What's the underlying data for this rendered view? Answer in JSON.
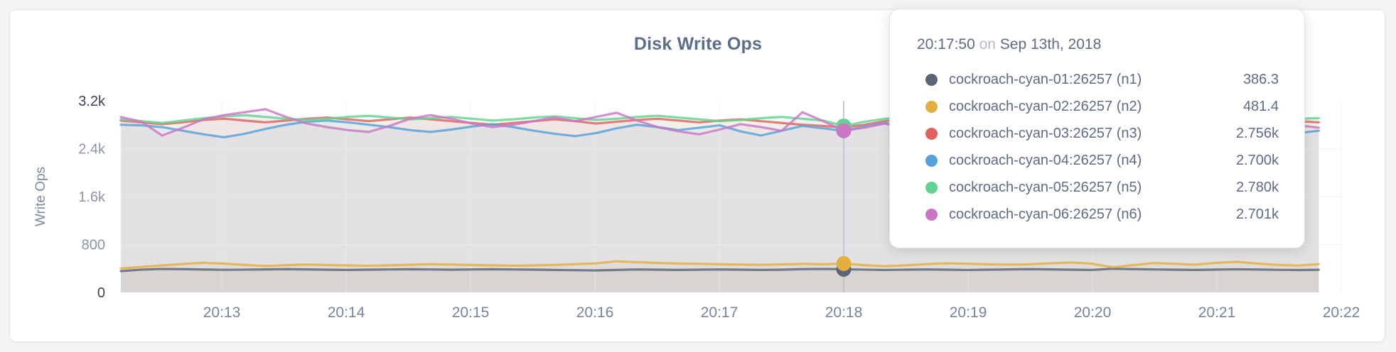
{
  "chart": {
    "title": "Disk Write Ops",
    "y_axis_label": "Write Ops"
  },
  "tooltip": {
    "time": "20:17:50",
    "connector": "on",
    "date": "Sep 13th, 2018",
    "rows": [
      {
        "label": "cockroach-cyan-01:26257 (n1)",
        "value": "386.3",
        "color": "#5c6478"
      },
      {
        "label": "cockroach-cyan-02:26257 (n2)",
        "value": "481.4",
        "color": "#e3af41"
      },
      {
        "label": "cockroach-cyan-03:26257 (n3)",
        "value": "2.756k",
        "color": "#e0625e"
      },
      {
        "label": "cockroach-cyan-04:26257 (n4)",
        "value": "2.700k",
        "color": "#58a1d8"
      },
      {
        "label": "cockroach-cyan-05:26257 (n5)",
        "value": "2.780k",
        "color": "#63d392"
      },
      {
        "label": "cockroach-cyan-06:26257 (n6)",
        "value": "2.701k",
        "color": "#ca76c4"
      }
    ]
  },
  "chart_data": {
    "type": "line",
    "title": "Disk Write Ops",
    "xlabel": "",
    "ylabel": "Write Ops",
    "ylim": [
      0,
      3200
    ],
    "grid": true,
    "legend_position": "none",
    "x_start": "20:12:10",
    "x_interval_seconds": 10,
    "x_ticks": [
      "20:13",
      "20:14",
      "20:15",
      "20:16",
      "20:17",
      "20:18",
      "20:19",
      "20:20",
      "20:21",
      "20:22"
    ],
    "y_ticks": [
      {
        "value": 0,
        "label": "0"
      },
      {
        "value": 800,
        "label": "800"
      },
      {
        "value": 1600,
        "label": "1.6k"
      },
      {
        "value": 2400,
        "label": "2.4k"
      },
      {
        "value": 3200,
        "label": "3.2k"
      }
    ],
    "hover_index": 35,
    "hover_time": "20:17:50",
    "series": [
      {
        "name": "cockroach-cyan-01:26257 (n1)",
        "color": "#5c6478",
        "values": [
          355,
          380,
          392,
          388,
          382,
          377,
          380,
          384,
          388,
          384,
          379,
          375,
          379,
          383,
          387,
          383,
          379,
          383,
          387,
          383,
          379,
          375,
          371,
          367,
          375,
          383,
          379,
          375,
          379,
          383,
          379,
          375,
          379,
          388,
          392,
          386.3,
          380,
          374,
          379,
          383,
          379,
          374,
          379,
          384,
          388,
          384,
          379,
          375,
          395,
          388,
          383,
          379,
          375,
          381,
          386,
          382,
          377,
          373,
          378
        ]
      },
      {
        "name": "cockroach-cyan-02:26257 (n2)",
        "color": "#e3af41",
        "values": [
          400,
          425,
          450,
          475,
          495,
          480,
          460,
          440,
          455,
          465,
          458,
          450,
          445,
          452,
          462,
          472,
          465,
          458,
          452,
          446,
          450,
          460,
          472,
          484,
          520,
          505,
          492,
          482,
          476,
          470,
          465,
          460,
          468,
          476,
          470,
          481.4,
          455,
          438,
          452,
          472,
          486,
          478,
          470,
          464,
          470,
          485,
          500,
          480,
          420,
          455,
          490,
          478,
          462,
          492,
          512,
          482,
          460,
          448,
          472
        ]
      },
      {
        "name": "cockroach-cyan-03:26257 (n3)",
        "color": "#e0625e",
        "values": [
          2870,
          2840,
          2810,
          2840,
          2880,
          2900,
          2870,
          2840,
          2870,
          2900,
          2920,
          2890,
          2860,
          2890,
          2920,
          2890,
          2860,
          2830,
          2800,
          2830,
          2860,
          2890,
          2860,
          2820,
          2850,
          2880,
          2900,
          2870,
          2840,
          2870,
          2890,
          2860,
          2830,
          2800,
          2780,
          2756,
          2800,
          2860,
          2910,
          2950,
          2910,
          2870,
          2840,
          2860,
          2890,
          2910,
          2880,
          2850,
          2820,
          2850,
          2880,
          2900,
          2870,
          2840,
          2870,
          2950,
          2900,
          2860,
          2840
        ]
      },
      {
        "name": "cockroach-cyan-04:26257 (n4)",
        "color": "#58a1d8",
        "values": [
          2800,
          2790,
          2760,
          2700,
          2640,
          2590,
          2650,
          2730,
          2800,
          2850,
          2870,
          2840,
          2800,
          2760,
          2710,
          2680,
          2720,
          2770,
          2810,
          2760,
          2700,
          2650,
          2610,
          2660,
          2740,
          2800,
          2760,
          2710,
          2750,
          2790,
          2690,
          2620,
          2700,
          2780,
          2740,
          2700,
          2770,
          2830,
          2780,
          2700,
          2640,
          2700,
          2760,
          2810,
          2760,
          2700,
          2660,
          2710,
          2770,
          2820,
          2780,
          2730,
          2690,
          2750,
          2800,
          2760,
          2700,
          2660,
          2700
        ]
      },
      {
        "name": "cockroach-cyan-05:26257 (n5)",
        "color": "#63d392",
        "values": [
          2890,
          2860,
          2830,
          2870,
          2910,
          2940,
          2960,
          2930,
          2900,
          2880,
          2900,
          2930,
          2950,
          2920,
          2890,
          2910,
          2930,
          2900,
          2870,
          2890,
          2920,
          2940,
          2910,
          2880,
          2900,
          2930,
          2950,
          2920,
          2890,
          2860,
          2880,
          2910,
          2930,
          2900,
          2870,
          2780,
          2850,
          2900,
          2940,
          2960,
          2930,
          2900,
          2880,
          2900,
          2930,
          2950,
          2920,
          2890,
          2910,
          2930,
          2900,
          2880,
          2900,
          2930,
          2910,
          2950,
          2930,
          2900,
          2910
        ]
      },
      {
        "name": "cockroach-cyan-06:26257 (n6)",
        "color": "#ca76c4",
        "values": [
          2930,
          2850,
          2620,
          2750,
          2890,
          2960,
          3010,
          3060,
          2930,
          2820,
          2760,
          2710,
          2680,
          2780,
          2900,
          2960,
          2900,
          2820,
          2760,
          2800,
          2860,
          2920,
          2860,
          2930,
          3000,
          2870,
          2760,
          2690,
          2640,
          2720,
          2810,
          2760,
          2700,
          3010,
          2860,
          2701,
          2750,
          2820,
          2720,
          2620,
          2700,
          2780,
          2730,
          2850,
          2980,
          2870,
          2760,
          2700,
          2760,
          2700,
          2650,
          2720,
          2790,
          2850,
          2960,
          3070,
          2920,
          2790,
          2750
        ]
      }
    ]
  }
}
